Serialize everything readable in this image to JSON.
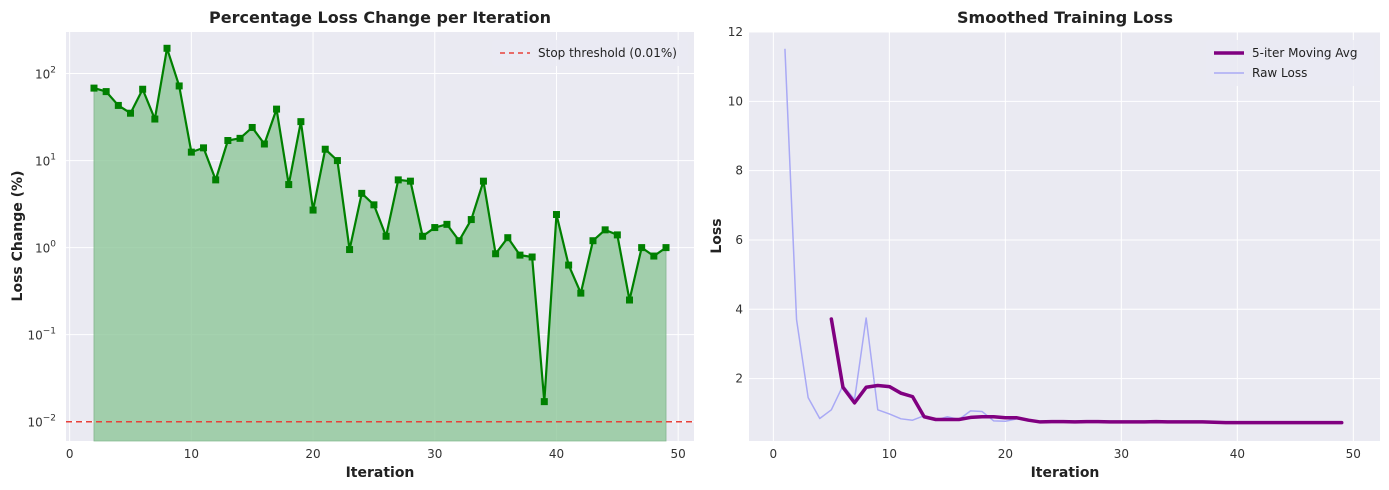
{
  "chart_data": [
    {
      "type": "line",
      "title": "Percentage Loss Change per Iteration",
      "xlabel": "Iteration",
      "ylabel": "Loss Change (%)",
      "yscale": "log",
      "xlim": [
        -0.3,
        51.3
      ],
      "ylim": [
        0.006,
        300
      ],
      "xticks": [
        0,
        10,
        20,
        30,
        40,
        50
      ],
      "yticks": [
        {
          "value": 0.01,
          "base": "10",
          "exp": "−2"
        },
        {
          "value": 0.1,
          "base": "10",
          "exp": "−1"
        },
        {
          "value": 1,
          "base": "10",
          "exp": "0"
        },
        {
          "value": 10,
          "base": "10",
          "exp": "1"
        },
        {
          "value": 100,
          "base": "10",
          "exp": "2"
        }
      ],
      "grid": true,
      "legend_position": "top-right",
      "threshold": {
        "name": "Stop threshold (0.01%)",
        "value": 0.01,
        "color": "#e8413a",
        "style": "dashed"
      },
      "series": [
        {
          "color": "#008000",
          "marker": "square",
          "fill": "#8fc89a",
          "x": [
            2,
            3,
            4,
            5,
            6,
            7,
            8,
            9,
            10,
            11,
            12,
            13,
            14,
            15,
            16,
            17,
            18,
            19,
            20,
            21,
            22,
            23,
            24,
            25,
            26,
            27,
            28,
            29,
            30,
            31,
            32,
            33,
            34,
            35,
            36,
            37,
            38,
            39,
            40,
            41,
            42,
            43,
            44,
            45,
            46,
            47,
            48,
            49
          ],
          "y": [
            68,
            62,
            43,
            35,
            66,
            30,
            195,
            72,
            12.5,
            14,
            6,
            17,
            18,
            24,
            15.5,
            39,
            5.3,
            28,
            2.7,
            13.5,
            10,
            0.95,
            4.2,
            3.1,
            1.35,
            6,
            5.8,
            1.35,
            1.7,
            1.85,
            1.2,
            2.1,
            5.8,
            0.85,
            1.3,
            0.82,
            0.78,
            0.017,
            2.4,
            0.63,
            0.3,
            1.2,
            1.6,
            1.4,
            0.25,
            1.0,
            0.8,
            1.0
          ]
        }
      ]
    },
    {
      "type": "line",
      "title": "Smoothed Training Loss",
      "xlabel": "Iteration",
      "ylabel": "Loss",
      "xlim": [
        -2.1,
        52.3
      ],
      "ylim": [
        0.2,
        12
      ],
      "xticks": [
        0,
        10,
        20,
        30,
        40,
        50
      ],
      "yticks": [
        2,
        4,
        6,
        8,
        10,
        12
      ],
      "grid": true,
      "legend_position": "top-right",
      "series": [
        {
          "name": "5-iter Moving Avg",
          "color": "#800080",
          "linewidth": 3.5,
          "x": [
            5,
            6,
            7,
            8,
            9,
            10,
            11,
            12,
            13,
            14,
            15,
            16,
            17,
            18,
            19,
            20,
            21,
            22,
            23,
            24,
            25,
            26,
            27,
            28,
            29,
            30,
            31,
            32,
            33,
            34,
            35,
            36,
            37,
            38,
            39,
            40,
            41,
            42,
            43,
            44,
            45,
            46,
            47,
            48,
            49
          ],
          "y": [
            3.72,
            1.75,
            1.3,
            1.75,
            1.8,
            1.77,
            1.58,
            1.48,
            0.9,
            0.82,
            0.82,
            0.82,
            0.88,
            0.9,
            0.9,
            0.87,
            0.87,
            0.8,
            0.75,
            0.76,
            0.76,
            0.75,
            0.76,
            0.76,
            0.75,
            0.75,
            0.75,
            0.75,
            0.76,
            0.75,
            0.75,
            0.75,
            0.75,
            0.74,
            0.73,
            0.73,
            0.73,
            0.73,
            0.73,
            0.73,
            0.73,
            0.73,
            0.73,
            0.73,
            0.73
          ]
        },
        {
          "name": "Raw Loss",
          "color": "#a9a9f5",
          "linewidth": 1.5,
          "x": [
            1,
            2,
            3,
            4,
            5,
            6,
            7,
            8,
            9,
            10,
            11,
            12,
            13,
            14,
            15,
            16,
            17,
            18,
            19,
            20,
            21,
            22,
            23,
            24,
            25,
            26,
            27,
            28,
            29,
            30,
            31,
            32,
            33,
            34,
            35,
            36,
            37,
            38,
            39,
            40,
            41,
            42,
            43,
            44,
            45,
            46,
            47,
            48,
            49
          ],
          "y": [
            11.5,
            3.7,
            1.45,
            0.85,
            1.1,
            1.8,
            1.4,
            3.75,
            1.1,
            0.98,
            0.84,
            0.8,
            0.93,
            0.8,
            0.9,
            0.82,
            1.07,
            1.05,
            0.78,
            0.77,
            0.84,
            0.8,
            0.75,
            0.76,
            0.76,
            0.75,
            0.75,
            0.75,
            0.75,
            0.75,
            0.75,
            0.75,
            0.75,
            0.75,
            0.75,
            0.75,
            0.75,
            0.75,
            0.73,
            0.73,
            0.73,
            0.73,
            0.73,
            0.73,
            0.73,
            0.73,
            0.73,
            0.73,
            0.73
          ]
        }
      ]
    }
  ]
}
